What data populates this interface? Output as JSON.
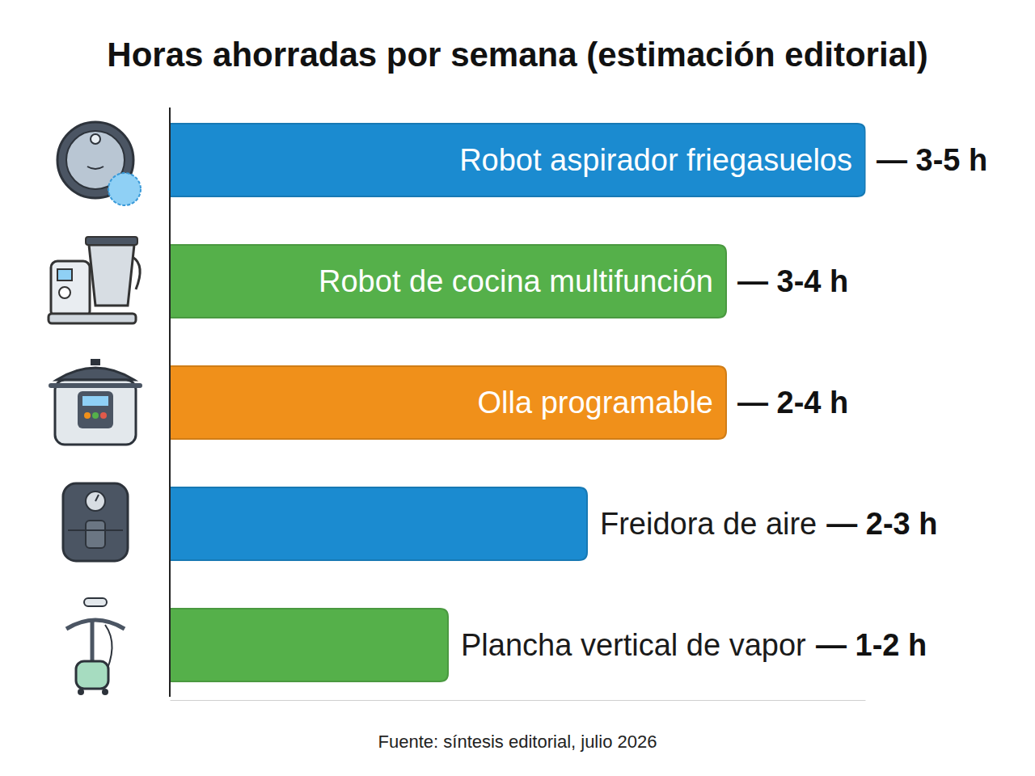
{
  "chart_data": {
    "type": "bar",
    "orientation": "horizontal",
    "title": "Horas ahorradas por semana (estimación editorial)",
    "categories": [
      "Robot aspirador friegasuelos",
      "Robot de cocina multifunción",
      "Olla programable",
      "Freidora de aire",
      "Plancha vertical de vapor"
    ],
    "values": [
      5,
      4,
      4,
      3,
      2
    ],
    "value_labels": [
      "— 3-5 h",
      "— 3-4 h",
      "— 2-4 h",
      "— 2-3 h",
      "— 1-2 h"
    ],
    "colors": [
      "#1b8bd0",
      "#55b04a",
      "#f0901a",
      "#1b8bd0",
      "#55b04a"
    ],
    "xlim": [
      0,
      5
    ],
    "tick_labels": false,
    "data_labels": true,
    "source": "Fuente: síntesis editorial, julio 2026"
  }
}
